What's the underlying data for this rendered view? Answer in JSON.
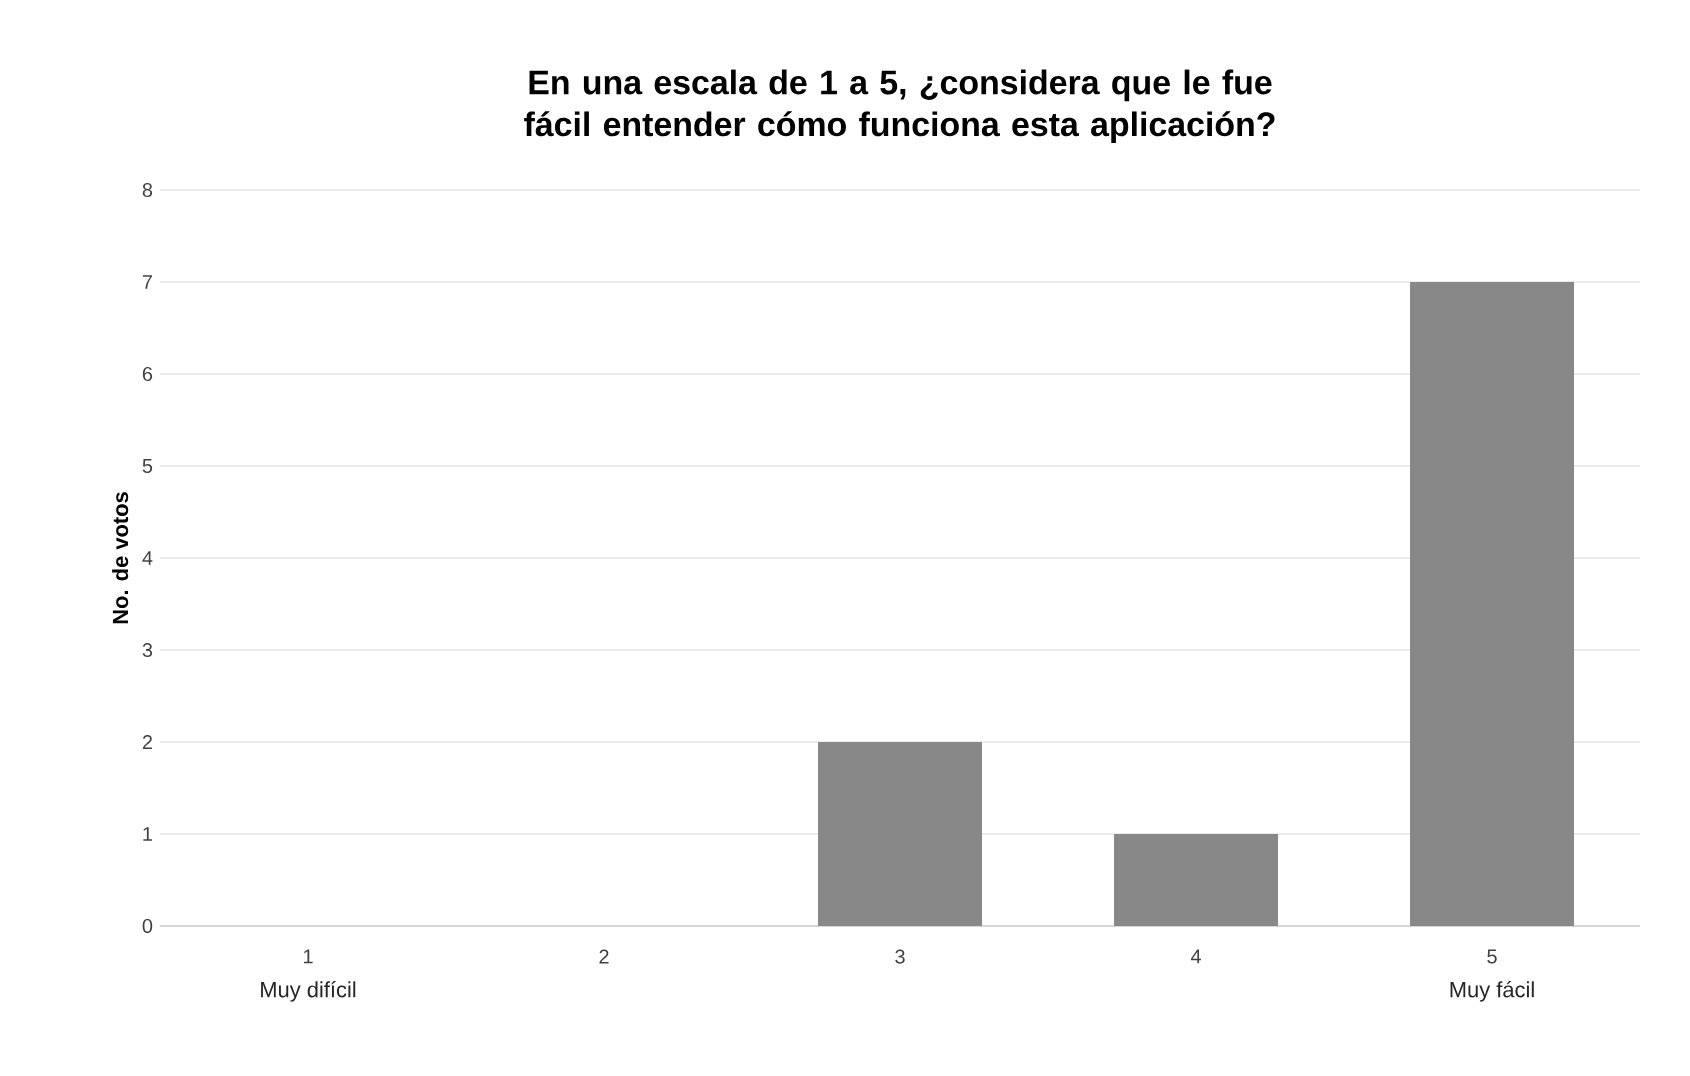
{
  "chart_data": {
    "type": "bar",
    "title": "En una escala de 1 a 5, ¿considera que le fue fácil entender cómo funciona esta aplicación?",
    "ylabel": "No. de votos",
    "categories": [
      "1",
      "2",
      "3",
      "4",
      "5"
    ],
    "values": [
      0,
      0,
      2,
      1,
      7
    ],
    "color": "#888888",
    "ylim": [
      0,
      8
    ],
    "yticks": [
      0,
      1,
      2,
      3,
      4,
      5,
      6,
      7,
      8
    ],
    "grid": "y",
    "annotations": [
      "Muy difícil",
      "Muy fácil"
    ]
  }
}
